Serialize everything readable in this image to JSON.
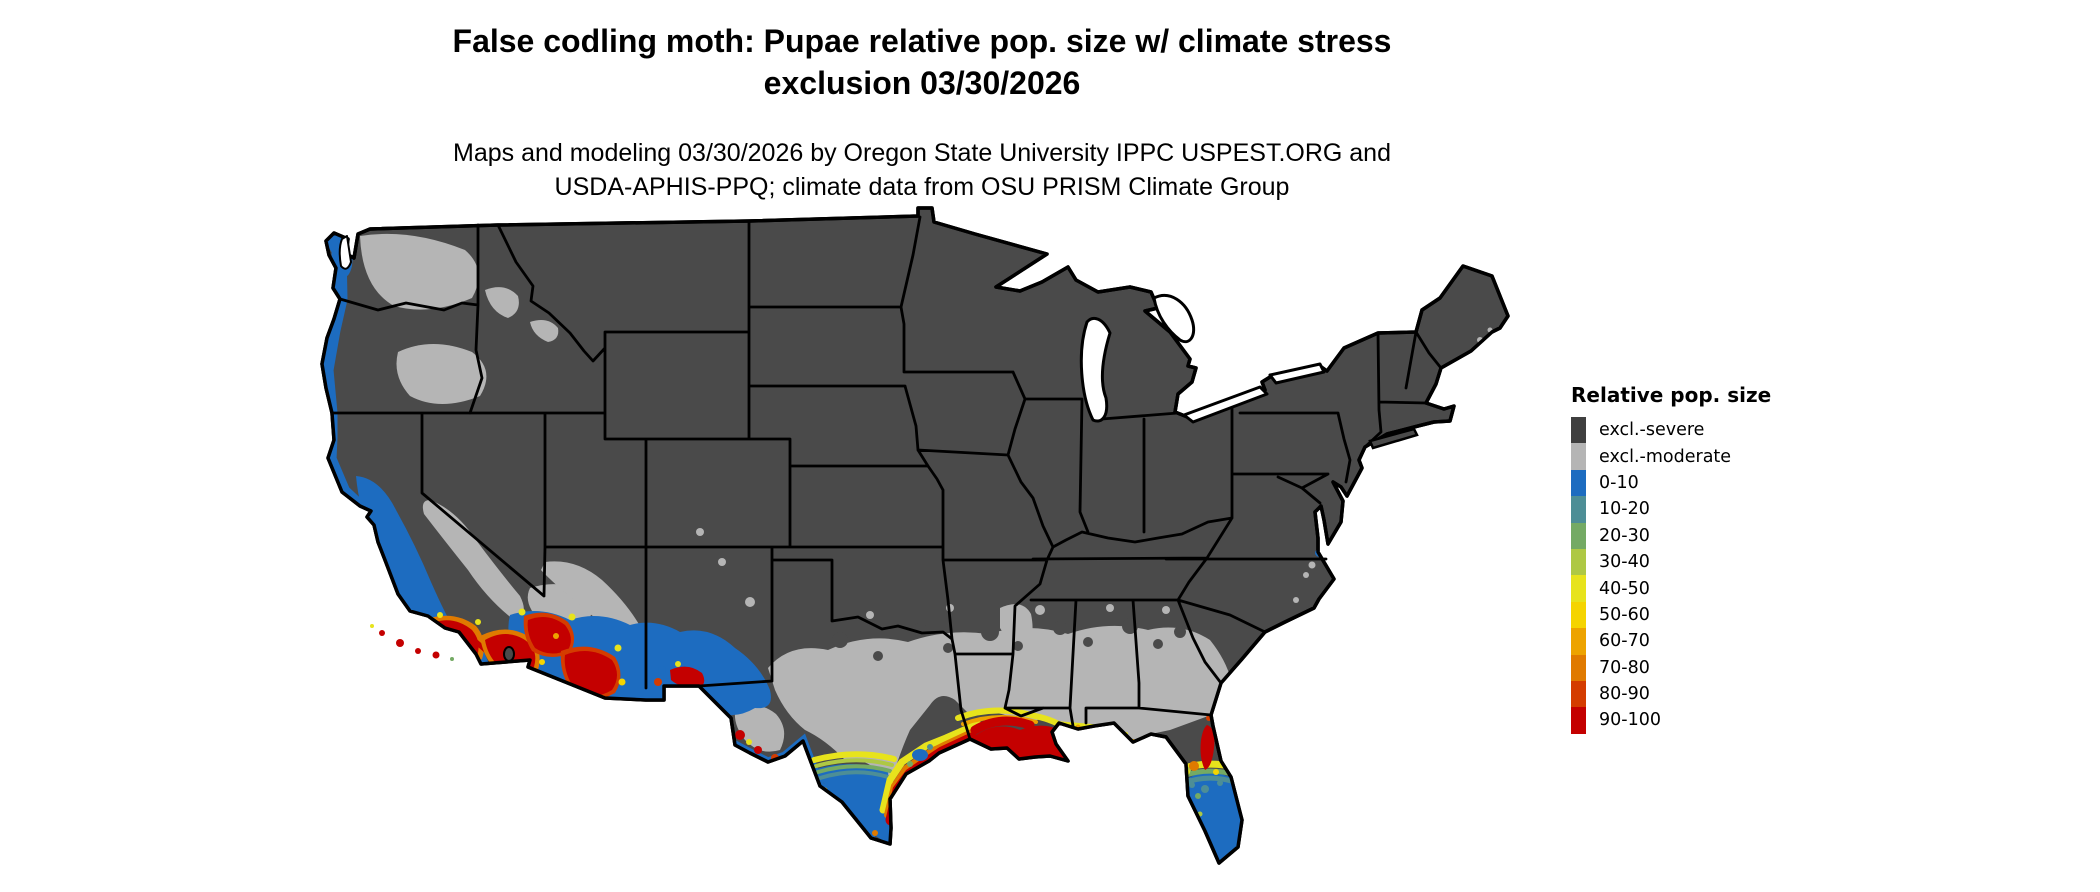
{
  "header": {
    "title_line1": "False codling moth: Pupae relative pop. size w/ climate stress",
    "title_line2": "exclusion 03/30/2026",
    "subtitle_line1": "Maps and modeling 03/30/2026 by Oregon State University IPPC USPEST.ORG and",
    "subtitle_line2": "USDA-APHIS-PPQ; climate data from OSU PRISM Climate Group"
  },
  "legend": {
    "title": "Relative pop. size",
    "items": [
      {
        "label": "excl.-severe",
        "color": "#3f3f3f"
      },
      {
        "label": "excl.-moderate",
        "color": "#b5b5b5"
      },
      {
        "label": "0-10",
        "color": "#1d6cc0"
      },
      {
        "label": "10-20",
        "color": "#4d8e96"
      },
      {
        "label": "20-30",
        "color": "#74aa64"
      },
      {
        "label": "30-40",
        "color": "#aec844"
      },
      {
        "label": "40-50",
        "color": "#e7e31c"
      },
      {
        "label": "50-60",
        "color": "#f5d400"
      },
      {
        "label": "60-70",
        "color": "#eda300"
      },
      {
        "label": "70-80",
        "color": "#e07a00"
      },
      {
        "label": "80-90",
        "color": "#d43c00"
      },
      {
        "label": "90-100",
        "color": "#c40000"
      }
    ]
  },
  "map": {
    "region": "Continental United States",
    "land_base_color": "#4a4a4a",
    "water_color": "#ffffff",
    "state_border_color": "#000000",
    "high_population_areas": "southern California, southern Arizona, Rio Grande valley, Texas-Louisiana Gulf coast, northeast Florida, Florida Keys",
    "low_population_areas": "Pacific coast strip, California Central Valley, southern Texas, Florida peninsula",
    "excluded_severe_areas": "northern and interior United States",
    "excluded_moderate_areas": "inland Pacific Northwest, Sierra foothills, central Texas, Gulf and southeastern coastal plain"
  }
}
